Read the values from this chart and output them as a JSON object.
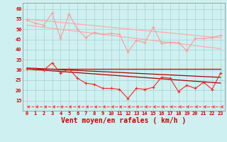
{
  "x": [
    0,
    1,
    2,
    3,
    4,
    5,
    6,
    7,
    8,
    9,
    10,
    11,
    12,
    13,
    14,
    15,
    16,
    17,
    18,
    19,
    20,
    21,
    22,
    23
  ],
  "background_color": "#cef0f0",
  "xlabel": "Vent moyen/en rafales ( km/h )",
  "xlabel_color": "#cc0000",
  "xlabel_fontsize": 7,
  "yticks": [
    15,
    20,
    25,
    30,
    35,
    40,
    45,
    50,
    55,
    60
  ],
  "ylim": [
    10,
    63
  ],
  "xlim": [
    -0.5,
    23.5
  ],
  "line_dark_red_flat": [
    30.5,
    30.5,
    30.5,
    30.5,
    30.5,
    30.5,
    30.5,
    30.5,
    30.5,
    30.5,
    30.5,
    30.5,
    30.5,
    30.5,
    30.5,
    30.5,
    30.5,
    30.5,
    30.5,
    30.5,
    30.5,
    30.5,
    30.5,
    30.5
  ],
  "line_dark_red_trend_upper": [
    31.0,
    30.8,
    30.6,
    30.4,
    30.2,
    30.0,
    29.8,
    29.6,
    29.4,
    29.2,
    29.0,
    28.8,
    28.6,
    28.4,
    28.2,
    28.0,
    27.8,
    27.6,
    27.4,
    27.2,
    27.0,
    26.8,
    26.6,
    26.4
  ],
  "line_dark_red_trend_lower": [
    30.5,
    30.2,
    29.9,
    29.6,
    29.3,
    29.0,
    28.7,
    28.4,
    28.1,
    27.8,
    27.5,
    27.2,
    26.9,
    26.6,
    26.3,
    26.0,
    25.7,
    25.4,
    25.1,
    24.8,
    24.5,
    24.2,
    23.9,
    23.6
  ],
  "line_dark_red_markers": [
    30.5,
    30.5,
    30.0,
    33.5,
    28.5,
    30.5,
    26.0,
    23.5,
    23.0,
    21.0,
    21.0,
    20.5,
    16.0,
    21.0,
    20.5,
    21.5,
    26.5,
    26.0,
    19.5,
    22.5,
    21.0,
    24.0,
    20.5,
    28.5
  ],
  "line_light_red_markers": [
    54.5,
    53.0,
    52.0,
    58.0,
    45.5,
    57.5,
    50.0,
    46.0,
    48.5,
    47.5,
    48.0,
    47.5,
    39.0,
    44.5,
    43.5,
    51.0,
    43.0,
    43.5,
    43.5,
    39.5,
    45.5,
    45.5,
    46.0,
    47.0
  ],
  "line_light_red_trend_upper": [
    55.0,
    54.6,
    54.2,
    53.8,
    53.4,
    53.0,
    52.6,
    52.2,
    51.8,
    51.4,
    51.0,
    50.6,
    50.2,
    49.8,
    49.4,
    49.0,
    48.6,
    48.2,
    47.8,
    47.4,
    47.0,
    46.6,
    46.2,
    45.8
  ],
  "line_light_red_trend_lower": [
    52.0,
    51.5,
    51.0,
    50.5,
    50.0,
    49.5,
    49.0,
    48.5,
    48.0,
    47.5,
    47.0,
    46.5,
    46.0,
    45.5,
    45.0,
    44.5,
    44.0,
    43.5,
    43.0,
    42.5,
    42.0,
    41.5,
    41.0,
    40.5
  ],
  "line_dashed_bottom": [
    12.0,
    12.0,
    12.0,
    12.0,
    12.0,
    12.0,
    12.0,
    12.0,
    12.0,
    12.0,
    12.0,
    12.0,
    12.0,
    12.0,
    12.0,
    12.0,
    12.0,
    12.0,
    12.0,
    12.0,
    12.0,
    12.0,
    12.0,
    12.0
  ]
}
